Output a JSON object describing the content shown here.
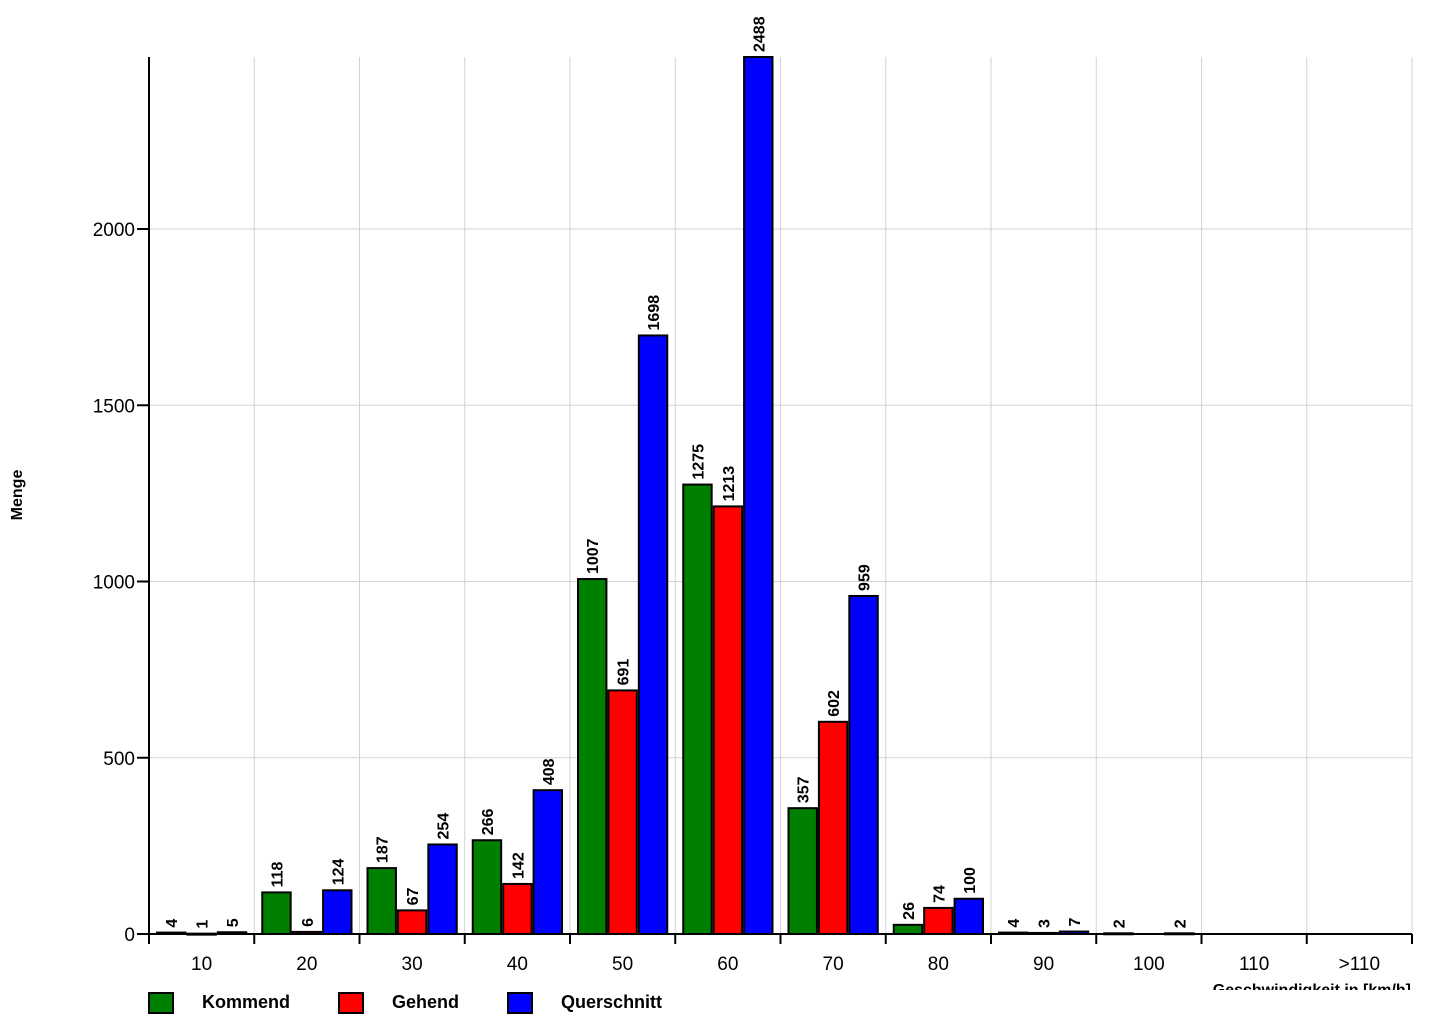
{
  "chart_data": {
    "type": "bar",
    "ylabel": "Menge",
    "xlabel": "Geschwindigkeit in [km/h]",
    "ylim": [
      0,
      2488
    ],
    "yticks": [
      0,
      500,
      1000,
      1500,
      2000
    ],
    "grid": true,
    "legend_position": "bottom-left",
    "categories": [
      "10",
      "20",
      "30",
      "40",
      "50",
      "60",
      "70",
      "80",
      "90",
      "100",
      "110",
      ">110"
    ],
    "series": [
      {
        "name": "Kommend",
        "color": "#008000",
        "values": [
          4,
          118,
          187,
          266,
          1007,
          1275,
          357,
          26,
          4,
          2,
          0,
          0
        ]
      },
      {
        "name": "Gehend",
        "color": "#ff0000",
        "values": [
          1,
          6,
          67,
          142,
          691,
          1213,
          602,
          74,
          3,
          0,
          0,
          0
        ]
      },
      {
        "name": "Querschnitt",
        "color": "#0000ff",
        "values": [
          5,
          124,
          254,
          408,
          1698,
          2488,
          959,
          100,
          7,
          2,
          0,
          0
        ]
      }
    ]
  }
}
